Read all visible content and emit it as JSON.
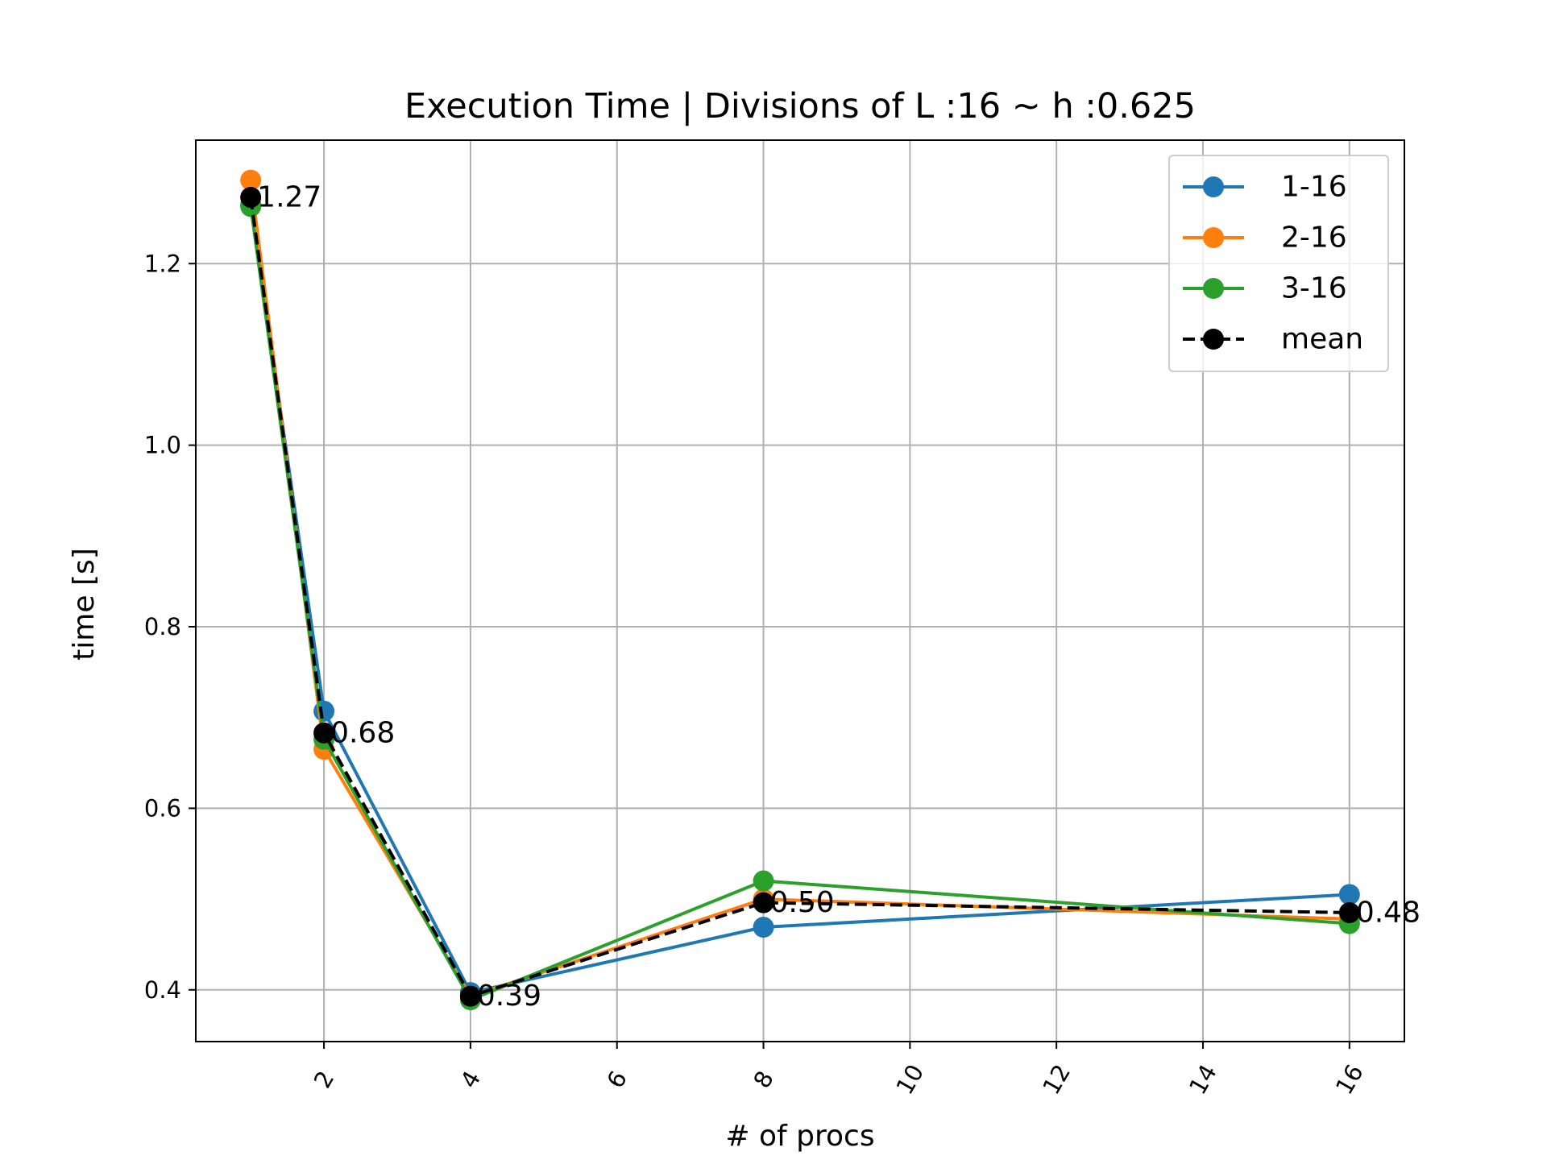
{
  "chart_data": {
    "type": "line",
    "title": "Execution Time | Divisions of L :16 ~ h :0.625",
    "xlabel": "# of procs",
    "ylabel": "time [s]",
    "xlim": [
      0.25,
      16.75
    ],
    "ylim": [
      0.343,
      1.336
    ],
    "xticks": [
      2,
      4,
      6,
      8,
      10,
      12,
      14,
      16
    ],
    "yticks": [
      0.4,
      0.6,
      0.8,
      1.0,
      1.2
    ],
    "ytick_labels": [
      "0.4",
      "0.6",
      "0.8",
      "1.0",
      "1.2"
    ],
    "grid": true,
    "legend_position": "top-right",
    "x": [
      1,
      2,
      4,
      8,
      16
    ],
    "series": [
      {
        "name": "1-16",
        "values": [
          1.265,
          0.707,
          0.397,
          0.469,
          0.505
        ],
        "color": "#1f77b4",
        "style": "solid"
      },
      {
        "name": "2-16",
        "values": [
          1.292,
          0.665,
          0.393,
          0.5,
          0.478
        ],
        "color": "#ff7f0e",
        "style": "solid"
      },
      {
        "name": "3-16",
        "values": [
          1.263,
          0.676,
          0.389,
          0.52,
          0.473
        ],
        "color": "#2ca02c",
        "style": "solid"
      },
      {
        "name": "mean",
        "values": [
          1.273,
          0.683,
          0.393,
          0.496,
          0.485
        ],
        "color": "#000000",
        "style": "dashed"
      }
    ],
    "annotations": [
      {
        "x": 1,
        "y": 1.273,
        "text": "1.27"
      },
      {
        "x": 2,
        "y": 0.683,
        "text": "0.68"
      },
      {
        "x": 4,
        "y": 0.393,
        "text": "0.39"
      },
      {
        "x": 8,
        "y": 0.496,
        "text": "0.50"
      },
      {
        "x": 16,
        "y": 0.485,
        "text": "0.48"
      }
    ]
  }
}
